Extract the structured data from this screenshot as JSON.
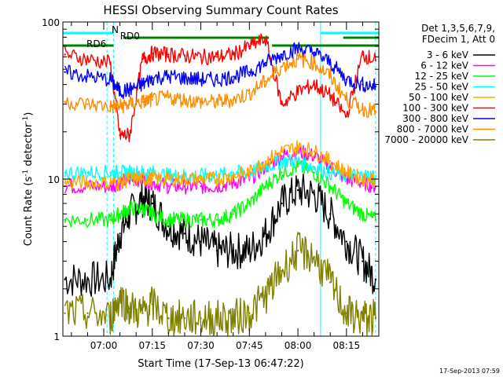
{
  "chart_data": {
    "type": "line",
    "title": "HESSI Observing Summary Count Rates",
    "xlabel": "Start Time (17-Sep-13 06:47:22)",
    "ylabel": "Count Rate (s⁻¹ detector⁻¹)",
    "ylabel_parts": {
      "main": "Count Rate (s",
      "exp1": "-1",
      "mid": " detector",
      "exp2": "-1",
      "end": ")"
    },
    "y_scale": "log",
    "ylim": [
      1,
      100
    ],
    "y_ticks": [
      "1",
      "10",
      "100"
    ],
    "xlim": [
      "06:47:22",
      "08:25:00"
    ],
    "x_ticks": [
      "07:00",
      "07:15",
      "07:30",
      "07:45",
      "08:00",
      "08:15"
    ],
    "grid": false,
    "legend_placement": "right",
    "legend_header": [
      "Det 1,3,5,6,7,9,",
      "FDecim 1, Att 0"
    ],
    "timestamp": "17-Sep-2013 07:59",
    "flags": [
      {
        "name": "N",
        "color": "#00ffff",
        "intervals": [
          [
            "06:47:22",
            "07:03:00"
          ],
          [
            "08:07:00",
            "08:25:00"
          ]
        ]
      },
      {
        "name": "RD0",
        "color": "#008000",
        "intervals": [
          [
            "07:06:00",
            "07:51:00"
          ]
        ]
      },
      {
        "name": "RD6",
        "color": "#008000",
        "intervals": [
          [
            "06:47:22",
            "07:03:00"
          ],
          [
            "07:52:00",
            "08:25:00"
          ]
        ]
      },
      {
        "name": "",
        "color": "#008000",
        "intervals": [
          [
            "08:14:00",
            "08:25:00"
          ]
        ]
      }
    ],
    "markers": [
      {
        "time": "06:47:22",
        "color": "#00ffff",
        "style": "solid"
      },
      {
        "time": "07:01:00",
        "color": "#00ffff",
        "style": "dashed"
      },
      {
        "time": "07:03:00",
        "color": "#00ffff",
        "style": "dashed"
      },
      {
        "time": "08:07:00",
        "color": "#00ffff",
        "style": "solid"
      },
      {
        "time": "08:24:00",
        "color": "#00ffff",
        "style": "dashed"
      }
    ],
    "series": [
      {
        "name": "3 - 6 keV",
        "color": "#000000",
        "x": [
          "06:48",
          "06:55",
          "07:02",
          "07:05",
          "07:08",
          "07:12",
          "07:15",
          "07:20",
          "07:25",
          "07:30",
          "07:35",
          "07:40",
          "07:45",
          "07:50",
          "07:55",
          "08:00",
          "08:05",
          "08:10",
          "08:15",
          "08:20",
          "08:24"
        ],
        "y": [
          2.3,
          2.3,
          2.3,
          4.5,
          6,
          7.5,
          7,
          5,
          4.5,
          4,
          3.5,
          3.5,
          3.5,
          4.5,
          7,
          8.5,
          8,
          6,
          4,
          3,
          2.3
        ]
      },
      {
        "name": "6 - 12 keV",
        "color": "#ff00ff",
        "x": [
          "06:48",
          "06:55",
          "07:02",
          "07:05",
          "07:08",
          "07:12",
          "07:15",
          "07:20",
          "07:25",
          "07:30",
          "07:35",
          "07:40",
          "07:45",
          "07:50",
          "07:55",
          "08:00",
          "08:05",
          "08:10",
          "08:15",
          "08:20",
          "08:24"
        ],
        "y": [
          9,
          9,
          9,
          9.5,
          10,
          10,
          9.5,
          9,
          9,
          9,
          9,
          9.5,
          10,
          12,
          14,
          15,
          14,
          12,
          10,
          9.5,
          9
        ]
      },
      {
        "name": "12 - 25 keV",
        "color": "#00ff00",
        "x": [
          "06:48",
          "06:55",
          "07:02",
          "07:05",
          "07:08",
          "07:12",
          "07:15",
          "07:20",
          "07:25",
          "07:30",
          "07:35",
          "07:40",
          "07:45",
          "07:50",
          "07:55",
          "08:00",
          "08:05",
          "08:10",
          "08:15",
          "08:20",
          "08:24"
        ],
        "y": [
          5.5,
          5.5,
          5.5,
          6,
          6.5,
          6.5,
          6,
          5.5,
          5.5,
          5.5,
          5.5,
          6,
          7,
          9,
          11,
          12,
          11,
          9,
          7,
          6,
          5.5
        ]
      },
      {
        "name": "25 - 50 keV",
        "color": "#00ffff",
        "x": [
          "06:48",
          "06:55",
          "07:02",
          "07:05",
          "07:08",
          "07:12",
          "07:15",
          "07:20",
          "07:25",
          "07:30",
          "07:35",
          "07:40",
          "07:45",
          "07:50",
          "07:55",
          "08:00",
          "08:05",
          "08:10",
          "08:15",
          "08:20",
          "08:24"
        ],
        "y": [
          11,
          11,
          11,
          11,
          11,
          11,
          11,
          10.5,
          10.5,
          10.5,
          10.5,
          11,
          11,
          12,
          13,
          13,
          12,
          11,
          10.5,
          10.5,
          10.5
        ]
      },
      {
        "name": "50 - 100 keV",
        "color": "#ffa500",
        "x": [
          "06:48",
          "06:55",
          "07:02",
          "07:05",
          "07:08",
          "07:12",
          "07:15",
          "07:20",
          "07:25",
          "07:30",
          "07:35",
          "07:40",
          "07:45",
          "07:50",
          "07:55",
          "08:00",
          "08:05",
          "08:10",
          "08:15",
          "08:20",
          "08:24"
        ],
        "y": [
          9.5,
          9.5,
          9.5,
          9.5,
          10,
          10,
          10,
          10,
          10,
          10,
          10,
          10.5,
          11,
          13,
          15,
          16,
          15,
          13,
          11,
          10,
          10
        ]
      },
      {
        "name": "100 - 300 keV",
        "color": "#ff0000",
        "x": [
          "06:48",
          "06:55",
          "07:02",
          "07:05",
          "07:08",
          "07:12",
          "07:15",
          "07:20",
          "07:25",
          "07:30",
          "07:35",
          "07:40",
          "07:45",
          "07:50",
          "07:55",
          "08:00",
          "08:05",
          "08:10",
          "08:15",
          "08:20",
          "08:24"
        ],
        "y": [
          62,
          58,
          55,
          19,
          19,
          58,
          63,
          62,
          61,
          60,
          60,
          62,
          70,
          78,
          30,
          36,
          40,
          34,
          25,
          62,
          57
        ]
      },
      {
        "name": "300 - 800 keV",
        "color": "#0000ff",
        "x": [
          "06:48",
          "06:55",
          "07:02",
          "07:05",
          "07:08",
          "07:12",
          "07:15",
          "07:20",
          "07:25",
          "07:30",
          "07:35",
          "07:40",
          "07:45",
          "07:50",
          "07:55",
          "08:00",
          "08:05",
          "08:10",
          "08:15",
          "08:20",
          "08:24"
        ],
        "y": [
          48,
          45,
          43,
          36,
          37,
          40,
          44,
          45,
          44,
          43,
          43,
          45,
          48,
          55,
          62,
          68,
          64,
          55,
          43,
          40,
          39
        ]
      },
      {
        "name": "800 - 7000 keV",
        "color": "#ff8c00",
        "x": [
          "06:48",
          "06:55",
          "07:02",
          "07:05",
          "07:08",
          "07:12",
          "07:15",
          "07:20",
          "07:25",
          "07:30",
          "07:35",
          "07:40",
          "07:45",
          "07:50",
          "07:55",
          "08:00",
          "08:05",
          "08:10",
          "08:15",
          "08:20",
          "08:24"
        ],
        "y": [
          31,
          30,
          29,
          29,
          30,
          31,
          32,
          33,
          32,
          31,
          31,
          32,
          35,
          42,
          52,
          58,
          55,
          45,
          32,
          28,
          27
        ]
      },
      {
        "name": "7000 - 20000 keV",
        "color": "#808000",
        "x": [
          "06:48",
          "06:55",
          "07:02",
          "07:05",
          "07:08",
          "07:12",
          "07:15",
          "07:20",
          "07:25",
          "07:30",
          "07:35",
          "07:40",
          "07:45",
          "07:50",
          "07:55",
          "08:00",
          "08:05",
          "08:10",
          "08:15",
          "08:20",
          "08:24"
        ],
        "y": [
          1.4,
          1.4,
          1.3,
          1.8,
          1.5,
          1.4,
          1.6,
          1.3,
          1.3,
          1.3,
          1.3,
          1.3,
          1.4,
          1.8,
          2.6,
          3.5,
          3.2,
          2.2,
          1.4,
          1.3,
          1.3
        ]
      }
    ]
  }
}
